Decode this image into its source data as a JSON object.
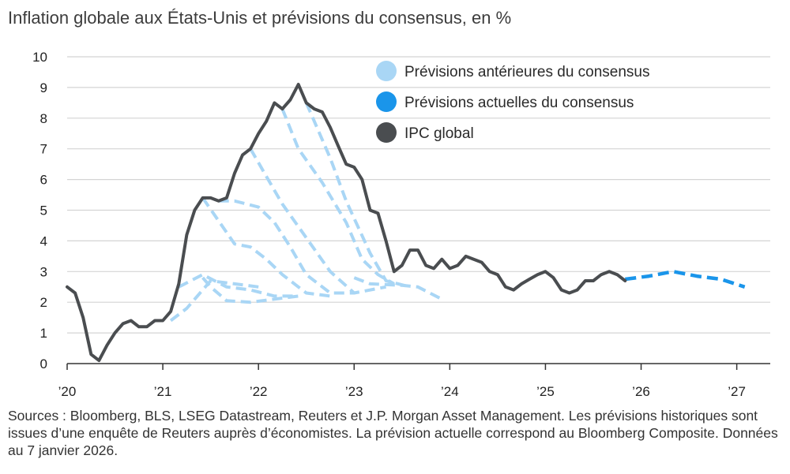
{
  "title": "Inflation globale aux États-Unis et prévisions du consensus, en %",
  "source": "Sources : Bloomberg, BLS, LSEG Datastream, Reuters et J.P. Morgan Asset Management. Les prévisions historiques sont issues d’une enquête de Reuters auprès d’économistes. La prévision actuelle correspond au Bloomberg Composite. Données au 7 janvier 2026.",
  "colors": {
    "cpi": "#4a4d50",
    "prior": "#a9d6f5",
    "current": "#1a95ea",
    "grid": "#d4d4d4",
    "axis": "#333333"
  },
  "chart_data": {
    "type": "line",
    "title": "Inflation globale aux États-Unis et prévisions du consensus, en %",
    "xlabel": "",
    "ylabel": "",
    "xlim": [
      2020.0,
      2027.35
    ],
    "ylim": [
      0,
      10
    ],
    "yticks": [
      "0",
      "1",
      "2",
      "3",
      "4",
      "5",
      "6",
      "7",
      "8",
      "9",
      "10"
    ],
    "xticks": [
      {
        "value": 2020,
        "label": "'20"
      },
      {
        "value": 2021,
        "label": "'21"
      },
      {
        "value": 2022,
        "label": "'22"
      },
      {
        "value": 2023,
        "label": "'23"
      },
      {
        "value": 2024,
        "label": "'24"
      },
      {
        "value": 2025,
        "label": "'25"
      },
      {
        "value": 2026,
        "label": "'26"
      },
      {
        "value": 2027,
        "label": "'27"
      }
    ],
    "legend": [
      {
        "key": "prior",
        "label": "Prévisions antérieures du consensus"
      },
      {
        "key": "current",
        "label": "Prévisions actuelles du consensus"
      },
      {
        "key": "cpi",
        "label": "IPC global"
      }
    ],
    "series": [
      {
        "name": "IPC global",
        "key": "cpi",
        "points": [
          [
            2020.0,
            2.5
          ],
          [
            2020.083,
            2.3
          ],
          [
            2020.167,
            1.5
          ],
          [
            2020.25,
            0.3
          ],
          [
            2020.333,
            0.1
          ],
          [
            2020.417,
            0.6
          ],
          [
            2020.5,
            1.0
          ],
          [
            2020.583,
            1.3
          ],
          [
            2020.667,
            1.4
          ],
          [
            2020.75,
            1.2
          ],
          [
            2020.833,
            1.2
          ],
          [
            2020.917,
            1.4
          ],
          [
            2021.0,
            1.4
          ],
          [
            2021.083,
            1.7
          ],
          [
            2021.167,
            2.6
          ],
          [
            2021.25,
            4.2
          ],
          [
            2021.333,
            5.0
          ],
          [
            2021.417,
            5.4
          ],
          [
            2021.5,
            5.4
          ],
          [
            2021.583,
            5.3
          ],
          [
            2021.667,
            5.4
          ],
          [
            2021.75,
            6.2
          ],
          [
            2021.833,
            6.8
          ],
          [
            2021.917,
            7.0
          ],
          [
            2022.0,
            7.5
          ],
          [
            2022.083,
            7.9
          ],
          [
            2022.167,
            8.5
          ],
          [
            2022.25,
            8.3
          ],
          [
            2022.333,
            8.6
          ],
          [
            2022.417,
            9.1
          ],
          [
            2022.5,
            8.5
          ],
          [
            2022.583,
            8.3
          ],
          [
            2022.667,
            8.2
          ],
          [
            2022.75,
            7.7
          ],
          [
            2022.833,
            7.1
          ],
          [
            2022.917,
            6.5
          ],
          [
            2023.0,
            6.4
          ],
          [
            2023.083,
            6.0
          ],
          [
            2023.167,
            5.0
          ],
          [
            2023.25,
            4.9
          ],
          [
            2023.333,
            4.0
          ],
          [
            2023.417,
            3.0
          ],
          [
            2023.5,
            3.2
          ],
          [
            2023.583,
            3.7
          ],
          [
            2023.667,
            3.7
          ],
          [
            2023.75,
            3.2
          ],
          [
            2023.833,
            3.1
          ],
          [
            2023.917,
            3.4
          ],
          [
            2024.0,
            3.1
          ],
          [
            2024.083,
            3.2
          ],
          [
            2024.167,
            3.5
          ],
          [
            2024.25,
            3.4
          ],
          [
            2024.333,
            3.3
          ],
          [
            2024.417,
            3.0
          ],
          [
            2024.5,
            2.9
          ],
          [
            2024.583,
            2.5
          ],
          [
            2024.667,
            2.4
          ],
          [
            2024.75,
            2.6
          ],
          [
            2024.833,
            2.75
          ],
          [
            2024.917,
            2.9
          ],
          [
            2025.0,
            3.0
          ],
          [
            2025.083,
            2.8
          ],
          [
            2025.167,
            2.4
          ],
          [
            2025.25,
            2.3
          ],
          [
            2025.333,
            2.4
          ],
          [
            2025.417,
            2.7
          ],
          [
            2025.5,
            2.7
          ],
          [
            2025.583,
            2.9
          ],
          [
            2025.667,
            3.0
          ],
          [
            2025.75,
            2.9
          ],
          [
            2025.833,
            2.7
          ]
        ]
      },
      {
        "name": "Prévisions actuelles du consensus",
        "key": "current",
        "points": [
          [
            2025.833,
            2.75
          ],
          [
            2026.083,
            2.85
          ],
          [
            2026.333,
            3.0
          ],
          [
            2026.583,
            2.85
          ],
          [
            2026.833,
            2.75
          ],
          [
            2027.083,
            2.5
          ]
        ]
      },
      {
        "name": "Prévisions antérieures du consensus",
        "key": "prior",
        "points": [
          [
            2021.083,
            1.4
          ],
          [
            2021.25,
            1.8
          ],
          [
            2021.5,
            2.7
          ],
          [
            2021.75,
            2.6
          ],
          [
            2022.0,
            2.5
          ]
        ]
      },
      {
        "name": "Prévisions antérieures du consensus",
        "key": "prior",
        "points": [
          [
            2021.167,
            2.5
          ],
          [
            2021.417,
            2.9
          ],
          [
            2021.667,
            2.5
          ],
          [
            2021.917,
            2.4
          ],
          [
            2022.167,
            2.2
          ],
          [
            2022.417,
            2.2
          ]
        ]
      },
      {
        "name": "Prévisions antérieures du consensus",
        "key": "prior",
        "points": [
          [
            2021.417,
            2.8
          ],
          [
            2021.5,
            2.5
          ],
          [
            2021.667,
            2.05
          ],
          [
            2021.917,
            2.0
          ],
          [
            2022.167,
            2.1
          ],
          [
            2022.417,
            2.2
          ]
        ]
      },
      {
        "name": "Prévisions antérieures du consensus",
        "key": "prior",
        "points": [
          [
            2021.417,
            5.4
          ],
          [
            2021.75,
            3.9
          ],
          [
            2021.917,
            3.8
          ],
          [
            2022.083,
            3.4
          ],
          [
            2022.25,
            2.9
          ],
          [
            2022.5,
            2.3
          ],
          [
            2022.75,
            2.2
          ]
        ]
      },
      {
        "name": "Prévisions antérieures du consensus",
        "key": "prior",
        "points": [
          [
            2021.583,
            5.3
          ],
          [
            2021.75,
            5.3
          ],
          [
            2022.0,
            5.1
          ],
          [
            2022.167,
            4.6
          ],
          [
            2022.333,
            3.8
          ],
          [
            2022.5,
            2.9
          ],
          [
            2022.75,
            2.3
          ],
          [
            2023.0,
            2.3
          ]
        ]
      },
      {
        "name": "Prévisions antérieures du consensus",
        "key": "prior",
        "points": [
          [
            2021.917,
            7.0
          ],
          [
            2022.083,
            6.1
          ],
          [
            2022.25,
            5.2
          ],
          [
            2022.5,
            4.1
          ],
          [
            2022.75,
            3.0
          ],
          [
            2023.0,
            2.3
          ],
          [
            2023.333,
            2.5
          ]
        ]
      },
      {
        "name": "Prévisions antérieures du consensus",
        "key": "prior",
        "points": [
          [
            2022.25,
            8.3
          ],
          [
            2022.417,
            7.0
          ],
          [
            2022.667,
            5.9
          ],
          [
            2022.917,
            4.6
          ],
          [
            2023.083,
            3.4
          ],
          [
            2023.25,
            2.9
          ],
          [
            2023.417,
            2.6
          ]
        ]
      },
      {
        "name": "Prévisions antérieures du consensus",
        "key": "prior",
        "points": [
          [
            2022.5,
            8.5
          ],
          [
            2022.75,
            6.7
          ],
          [
            2022.917,
            5.3
          ],
          [
            2023.167,
            3.6
          ],
          [
            2023.333,
            2.7
          ],
          [
            2023.583,
            2.5
          ]
        ]
      },
      {
        "name": "Prévisions antérieures du consensus",
        "key": "prior",
        "points": [
          [
            2023.0,
            2.8
          ],
          [
            2023.167,
            2.6
          ],
          [
            2023.5,
            2.55
          ],
          [
            2023.667,
            2.5
          ],
          [
            2023.917,
            2.1
          ]
        ]
      }
    ]
  }
}
